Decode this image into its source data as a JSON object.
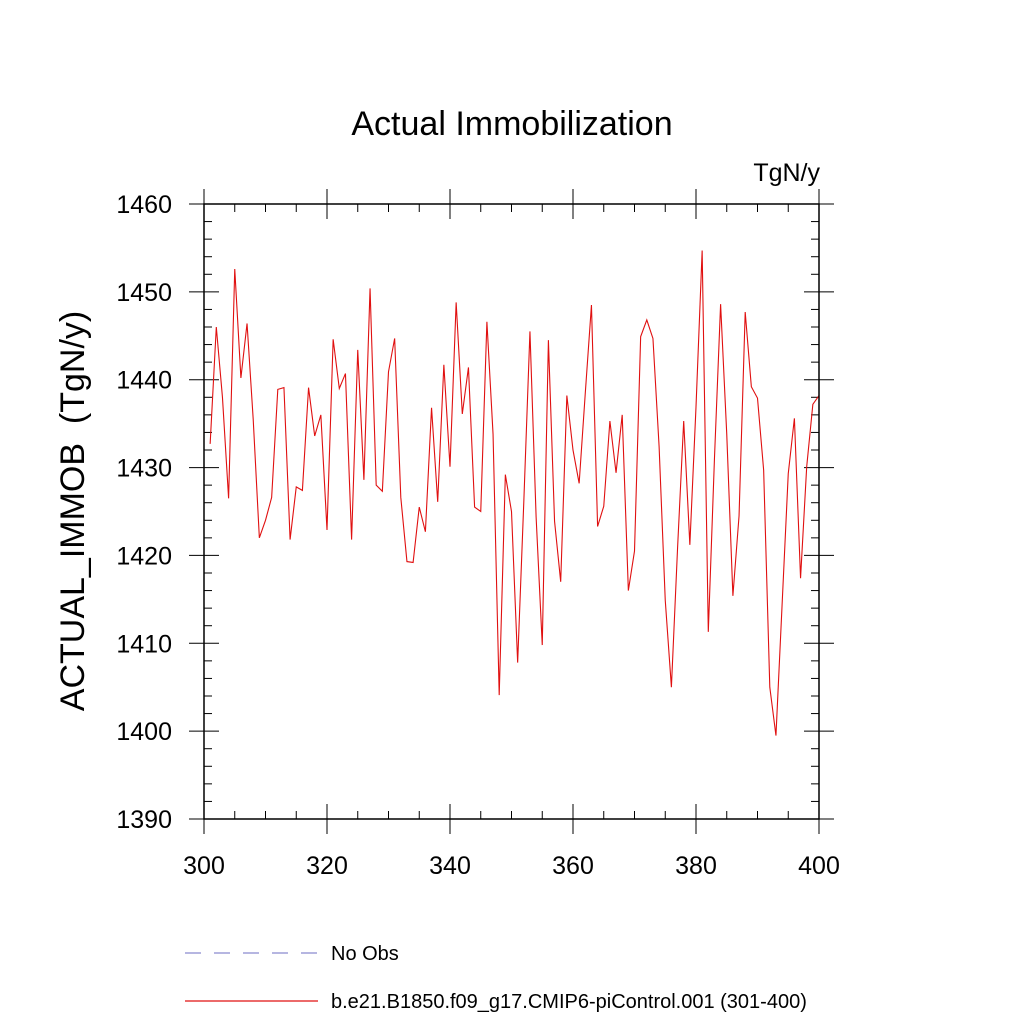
{
  "chart_data": {
    "type": "line",
    "title": "Actual Immobilization",
    "units_label": "TgN/y",
    "xlabel": "",
    "ylabel": "ACTUAL_IMMOB  (TgN/y)",
    "xlim": [
      300,
      400
    ],
    "ylim": [
      1390,
      1460
    ],
    "xticks": [
      300,
      320,
      340,
      360,
      380,
      400
    ],
    "yticks": [
      1390,
      1400,
      1410,
      1420,
      1430,
      1440,
      1450,
      1460
    ],
    "grid": false,
    "legend_position": "bottom",
    "legend": [
      {
        "label": "No Obs",
        "color": "#8a8acf",
        "style": "dashed"
      },
      {
        "label": "b.e21.B1850.f09_g17.CMIP6-piControl.001 (301-400)",
        "color": "#e01010",
        "style": "solid"
      }
    ],
    "series": [
      {
        "name": "b.e21.B1850.f09_g17.CMIP6-piControl.001 (301-400)",
        "color": "#e01010",
        "x": [
          301,
          302,
          303,
          304,
          305,
          306,
          307,
          308,
          309,
          310,
          311,
          312,
          313,
          314,
          315,
          316,
          317,
          318,
          319,
          320,
          321,
          322,
          323,
          324,
          325,
          326,
          327,
          328,
          329,
          330,
          331,
          332,
          333,
          334,
          335,
          336,
          337,
          338,
          339,
          340,
          341,
          342,
          343,
          344,
          345,
          346,
          347,
          348,
          349,
          350,
          351,
          352,
          353,
          354,
          355,
          356,
          357,
          358,
          359,
          360,
          361,
          362,
          363,
          364,
          365,
          366,
          367,
          368,
          369,
          370,
          371,
          372,
          373,
          374,
          375,
          376,
          377,
          378,
          379,
          380,
          381,
          382,
          383,
          384,
          385,
          386,
          387,
          388,
          389,
          390,
          391,
          392,
          393,
          394,
          395,
          396,
          397,
          398,
          399,
          400
        ],
        "values": [
          1432.7,
          1446.0,
          1438.0,
          1426.5,
          1452.6,
          1440.2,
          1446.4,
          1435.5,
          1422.0,
          1424.0,
          1426.6,
          1438.9,
          1439.1,
          1421.8,
          1427.8,
          1427.4,
          1439.1,
          1433.6,
          1436.0,
          1422.9,
          1444.6,
          1439.0,
          1440.7,
          1421.8,
          1443.4,
          1428.6,
          1450.4,
          1428.0,
          1427.3,
          1440.9,
          1444.7,
          1426.6,
          1419.3,
          1419.2,
          1425.5,
          1422.7,
          1436.8,
          1426.1,
          1441.7,
          1430.1,
          1448.8,
          1436.1,
          1441.4,
          1425.5,
          1425.0,
          1446.6,
          1433.8,
          1404.1,
          1429.2,
          1425.0,
          1407.8,
          1426.1,
          1445.5,
          1424.4,
          1409.8,
          1444.5,
          1423.9,
          1417.0,
          1438.2,
          1432.0,
          1428.2,
          1438.5,
          1448.5,
          1423.3,
          1425.6,
          1435.3,
          1429.4,
          1436.0,
          1416.0,
          1420.5,
          1444.9,
          1446.8,
          1444.7,
          1432.4,
          1414.9,
          1405.0,
          1420.8,
          1435.3,
          1421.2,
          1436.9,
          1454.7,
          1411.3,
          1431.0,
          1448.6,
          1433.8,
          1415.4,
          1424.5,
          1447.7,
          1439.2,
          1437.9,
          1429.7,
          1405.0,
          1399.5,
          1414.4,
          1429.3,
          1435.6,
          1417.4,
          1430.1,
          1437.2,
          1438.2
        ]
      }
    ]
  }
}
